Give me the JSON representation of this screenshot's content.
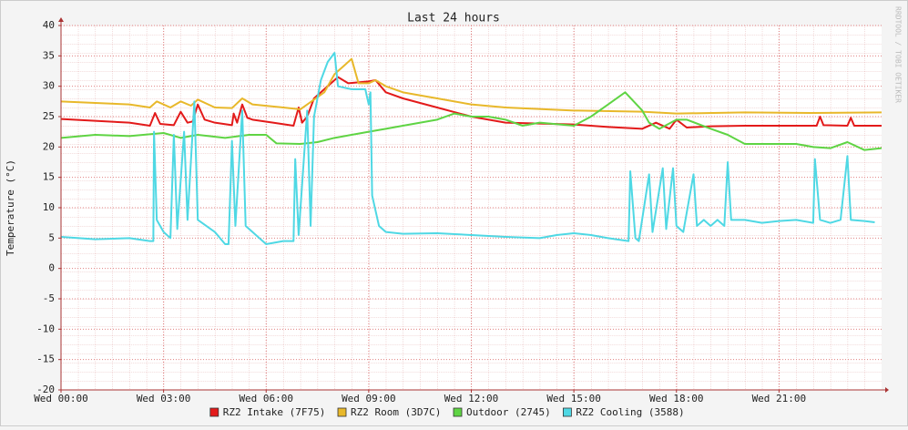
{
  "chart_data": {
    "type": "line",
    "title": "Last 24 hours",
    "y_label": "Temperature (°C)",
    "watermark": "RRDTOOL / TOBI OETIKER",
    "xlim": [
      0,
      24
    ],
    "xticks": [
      {
        "value": 0,
        "label": "Wed 00:00"
      },
      {
        "value": 3,
        "label": "Wed 03:00"
      },
      {
        "value": 6,
        "label": "Wed 06:00"
      },
      {
        "value": 9,
        "label": "Wed 09:00"
      },
      {
        "value": 12,
        "label": "Wed 12:00"
      },
      {
        "value": 15,
        "label": "Wed 15:00"
      },
      {
        "value": 18,
        "label": "Wed 18:00"
      },
      {
        "value": 21,
        "label": "Wed 21:00"
      }
    ],
    "ylim": [
      -20,
      40
    ],
    "yticks": [
      -20,
      -15,
      -10,
      -5,
      0,
      5,
      10,
      15,
      20,
      25,
      30,
      35,
      40
    ],
    "grid": true,
    "legend": "bottom",
    "series": [
      {
        "name": "RZ2 Intake (7F75)",
        "color": "#e31a1a",
        "x": [
          0,
          1,
          2,
          2.6,
          2.75,
          2.9,
          3.3,
          3.5,
          3.7,
          3.85,
          4.0,
          4.2,
          4.5,
          5.0,
          5.05,
          5.15,
          5.3,
          5.45,
          5.6,
          6.2,
          6.8,
          6.95,
          7.05,
          7.2,
          7.4,
          7.8,
          8.1,
          8.4,
          9.0,
          9.2,
          9.5,
          10,
          11,
          12,
          13,
          15,
          16,
          17,
          17.4,
          17.8,
          18,
          18.3,
          19,
          20,
          21,
          22.1,
          22.2,
          22.3,
          23,
          23.1,
          23.2,
          24
        ],
        "values": [
          24.6,
          24.3,
          24,
          23.5,
          25.6,
          23.8,
          23.6,
          25.8,
          24,
          24.2,
          27,
          24.5,
          24,
          23.6,
          25.5,
          24,
          27,
          24.8,
          24.5,
          24,
          23.5,
          26.5,
          24,
          25,
          28,
          30,
          31.5,
          30.5,
          30.8,
          31,
          29,
          28,
          26.5,
          25,
          24,
          23.7,
          23.3,
          23,
          24,
          23,
          24.5,
          23.2,
          23.4,
          23.5,
          23.5,
          23.5,
          25,
          23.6,
          23.5,
          24.8,
          23.5,
          23.5
        ]
      },
      {
        "name": "RZ2 Room (3D7C)",
        "color": "#e8b82a",
        "x": [
          0,
          2,
          2.6,
          2.8,
          3.2,
          3.5,
          3.8,
          4.0,
          4.5,
          5.0,
          5.3,
          5.6,
          6.5,
          7.0,
          7.2,
          7.7,
          8.0,
          8.3,
          8.5,
          8.7,
          9.0,
          9.2,
          9.5,
          10,
          11,
          12,
          13,
          15,
          17,
          18,
          20,
          22,
          24
        ],
        "values": [
          27.5,
          27,
          26.5,
          27.5,
          26.5,
          27.5,
          26.8,
          27.8,
          26.5,
          26.4,
          28,
          27,
          26.5,
          26.2,
          27,
          29,
          32,
          33.5,
          34.5,
          30.5,
          30.5,
          31,
          30,
          29,
          28,
          27,
          26.5,
          26,
          25.8,
          25.5,
          25.7,
          25.6,
          25.7
        ]
      },
      {
        "name": "Outdoor (2745)",
        "color": "#5fd444",
        "x": [
          0,
          1,
          2,
          3,
          3.5,
          4,
          4.8,
          5.5,
          6,
          6.3,
          7.0,
          7.5,
          8,
          8.5,
          9,
          9.5,
          10,
          11,
          11.5,
          12,
          12.5,
          13,
          13.5,
          14,
          15,
          15.5,
          16,
          16.5,
          17,
          17.2,
          17.5,
          18,
          18.3,
          19,
          19.5,
          20,
          21,
          21.5,
          22,
          22.5,
          23,
          23.5,
          24
        ],
        "values": [
          21.5,
          22,
          21.8,
          22.3,
          21.5,
          22,
          21.5,
          22,
          22,
          20.6,
          20.5,
          20.8,
          21.5,
          22,
          22.5,
          23,
          23.5,
          24.5,
          25.5,
          25,
          25,
          24.5,
          23.5,
          24,
          23.5,
          25,
          27,
          29,
          26,
          24,
          23,
          24.5,
          24.5,
          23,
          22,
          20.5,
          20.5,
          20.5,
          20,
          19.8,
          20.8,
          19.5,
          19.8
        ]
      },
      {
        "name": "RZ2 Cooling (3588)",
        "color": "#4fd8e4",
        "x": [
          0,
          1,
          2,
          2.6,
          2.7,
          2.72,
          2.8,
          3,
          3.2,
          3.3,
          3.4,
          3.6,
          3.7,
          3.9,
          4.0,
          4.5,
          4.8,
          4.9,
          5.0,
          5.1,
          5.3,
          5.4,
          5.6,
          6.0,
          6.5,
          6.8,
          6.85,
          6.95,
          7.2,
          7.3,
          7.4,
          7.6,
          7.8,
          8.0,
          8.1,
          8.5,
          8.9,
          9.0,
          9.05,
          9.1,
          9.3,
          9.5,
          10,
          11,
          12,
          13,
          14,
          14.5,
          15,
          15.5,
          16,
          16.6,
          16.65,
          16.8,
          16.9,
          17.2,
          17.3,
          17.6,
          17.7,
          17.9,
          18.0,
          18.2,
          18.5,
          18.6,
          18.8,
          19.0,
          19.2,
          19.4,
          19.5,
          19.6,
          20,
          20.5,
          21,
          21.5,
          22,
          22.05,
          22.2,
          22.5,
          22.8,
          23.0,
          23.1,
          23.5,
          23.8
        ],
        "values": [
          5.2,
          4.8,
          5,
          4.5,
          4.5,
          22.5,
          8,
          6,
          5,
          22,
          6.5,
          22.5,
          8,
          27.5,
          8,
          6,
          4,
          4,
          21,
          7,
          26,
          7,
          6,
          4,
          4.5,
          4.5,
          18,
          5.5,
          26,
          7,
          25,
          31,
          34,
          35.5,
          30,
          29.5,
          29.5,
          27,
          29,
          12,
          7,
          6,
          5.7,
          5.8,
          5.5,
          5.2,
          5,
          5.5,
          5.8,
          5.5,
          5,
          4.5,
          16,
          5,
          4.5,
          15.5,
          6,
          16.5,
          6.5,
          16.5,
          7,
          6,
          15.5,
          7,
          8,
          7,
          8,
          7,
          17.5,
          8,
          8,
          7.5,
          7.8,
          8,
          7.5,
          18,
          8,
          7.5,
          8,
          18.5,
          8,
          7.8,
          7.6
        ]
      }
    ]
  }
}
